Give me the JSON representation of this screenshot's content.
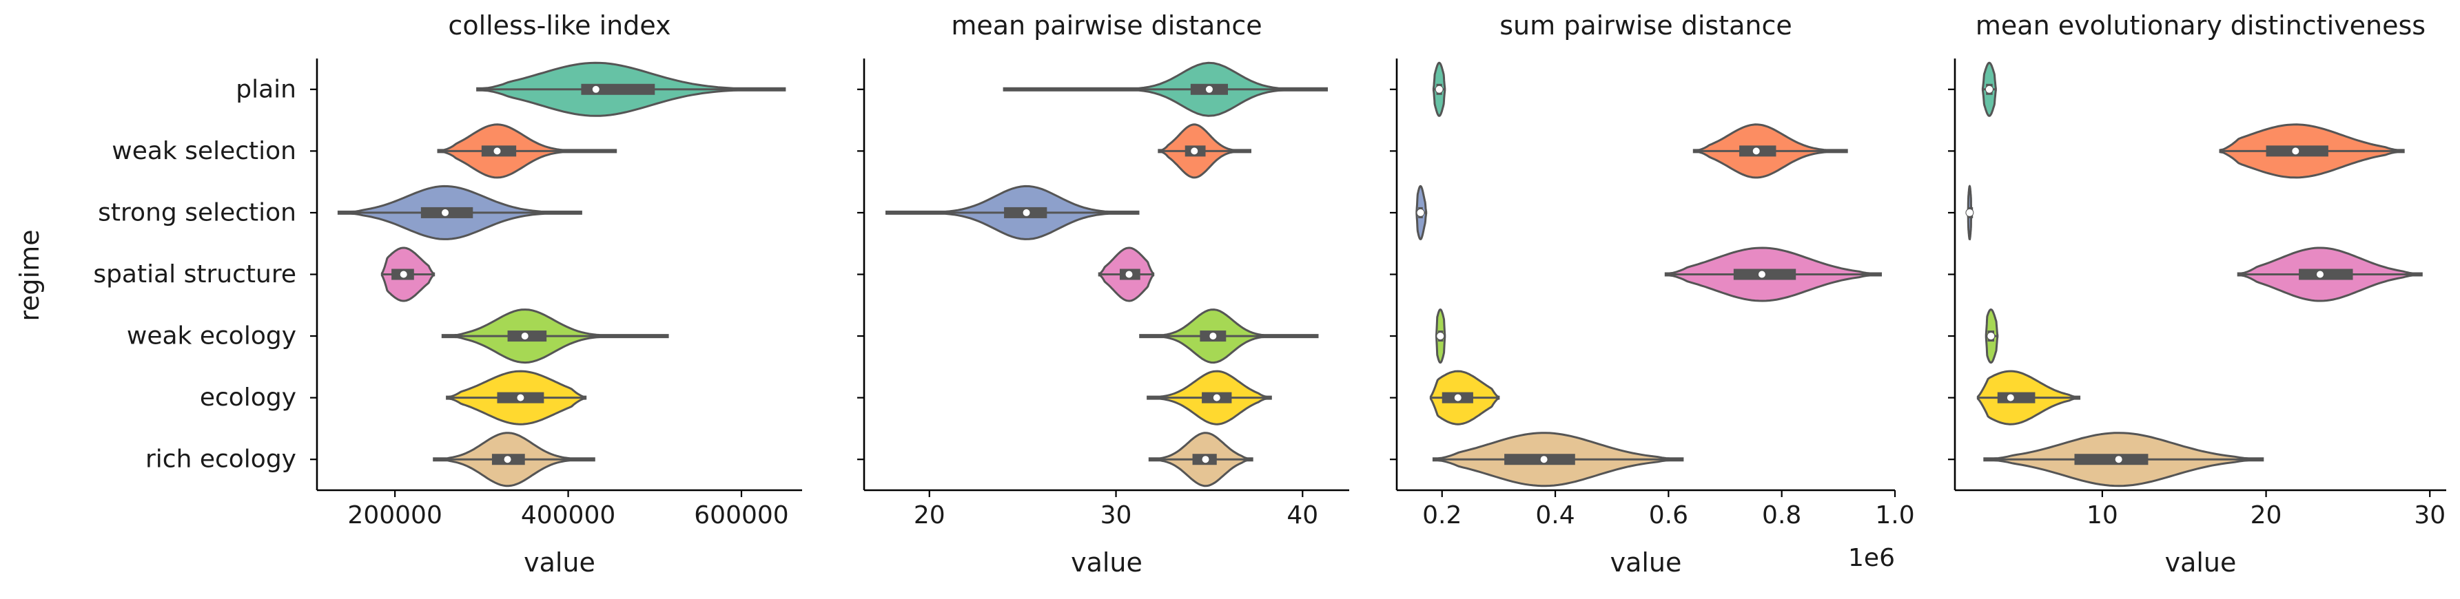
{
  "chart_data": {
    "type": "violin",
    "ylabel": "regime",
    "categories": [
      "plain",
      "weak selection",
      "strong selection",
      "spatial structure",
      "weak ecology",
      "ecology",
      "rich ecology"
    ],
    "colors": [
      "#66c2a5",
      "#fc8d62",
      "#8da0cb",
      "#e78ac3",
      "#a6d854",
      "#ffd92f",
      "#e5c494"
    ],
    "outline_color": "#555555",
    "panels": [
      {
        "title": "colless-like index",
        "xlabel": "value",
        "xlim": [
          110000,
          670000
        ],
        "ticks": [
          200000,
          400000,
          600000
        ],
        "tick_labels": [
          "200000",
          "400000",
          "600000"
        ],
        "offset_label": "",
        "series": [
          {
            "regime": "plain",
            "min": 295000,
            "q1": 415000,
            "median": 432000,
            "q3": 500000,
            "max": 650000
          },
          {
            "regime": "weak selection",
            "min": 250000,
            "q1": 300000,
            "median": 318000,
            "q3": 340000,
            "max": 455000
          },
          {
            "regime": "strong selection",
            "min": 135000,
            "q1": 230000,
            "median": 258000,
            "q3": 290000,
            "max": 415000
          },
          {
            "regime": "spatial structure",
            "min": 185000,
            "q1": 196000,
            "median": 210000,
            "q3": 222000,
            "max": 245000
          },
          {
            "regime": "weak ecology",
            "min": 255000,
            "q1": 330000,
            "median": 350000,
            "q3": 375000,
            "max": 515000
          },
          {
            "regime": "ecology",
            "min": 260000,
            "q1": 318000,
            "median": 345000,
            "q3": 372000,
            "max": 420000
          },
          {
            "regime": "rich ecology",
            "min": 245000,
            "q1": 312000,
            "median": 330000,
            "q3": 350000,
            "max": 430000
          }
        ]
      },
      {
        "title": "mean pairwise distance",
        "xlabel": "value",
        "xlim": [
          16.5,
          42.5
        ],
        "ticks": [
          20,
          30,
          40
        ],
        "tick_labels": [
          "20",
          "30",
          "40"
        ],
        "offset_label": "",
        "series": [
          {
            "regime": "plain",
            "min": 24,
            "q1": 34,
            "median": 35,
            "q3": 36,
            "max": 41.3
          },
          {
            "regime": "weak selection",
            "min": 32.3,
            "q1": 33.7,
            "median": 34.2,
            "q3": 34.8,
            "max": 37.2
          },
          {
            "regime": "strong selection",
            "min": 17.7,
            "q1": 24,
            "median": 25.2,
            "q3": 26.3,
            "max": 31.2
          },
          {
            "regime": "spatial structure",
            "min": 29.1,
            "q1": 30.2,
            "median": 30.7,
            "q3": 31.3,
            "max": 32
          },
          {
            "regime": "weak ecology",
            "min": 31.3,
            "q1": 34.5,
            "median": 35.2,
            "q3": 35.9,
            "max": 40.8
          },
          {
            "regime": "ecology",
            "min": 31.7,
            "q1": 34.6,
            "median": 35.4,
            "q3": 36.2,
            "max": 38.3
          },
          {
            "regime": "rich ecology",
            "min": 31.8,
            "q1": 34.1,
            "median": 34.8,
            "q3": 35.4,
            "max": 37.3
          }
        ]
      },
      {
        "title": "sum pairwise distance",
        "xlabel": "value",
        "xlim": [
          0.12,
          1.0
        ],
        "ticks": [
          0.2,
          0.4,
          0.6,
          0.8,
          1.0
        ],
        "tick_labels": [
          "0.2",
          "0.4",
          "0.6",
          "0.8",
          "1.0"
        ],
        "offset_label": "1e6",
        "series": [
          {
            "regime": "plain",
            "min": 0.185,
            "q1": 0.19,
            "median": 0.195,
            "q3": 0.2,
            "max": 0.205
          },
          {
            "regime": "weak selection",
            "min": 0.645,
            "q1": 0.725,
            "median": 0.755,
            "q3": 0.79,
            "max": 0.915
          },
          {
            "regime": "strong selection",
            "min": 0.155,
            "q1": 0.158,
            "median": 0.162,
            "q3": 0.166,
            "max": 0.172
          },
          {
            "regime": "spatial structure",
            "min": 0.595,
            "q1": 0.715,
            "median": 0.765,
            "q3": 0.825,
            "max": 0.975
          },
          {
            "regime": "weak ecology",
            "min": 0.19,
            "q1": 0.193,
            "median": 0.197,
            "q3": 0.202,
            "max": 0.205
          },
          {
            "regime": "ecology",
            "min": 0.18,
            "q1": 0.2,
            "median": 0.228,
            "q3": 0.255,
            "max": 0.3
          },
          {
            "regime": "rich ecology",
            "min": 0.185,
            "q1": 0.31,
            "median": 0.38,
            "q3": 0.435,
            "max": 0.625
          }
        ]
      },
      {
        "title": "mean evolutionary distinctiveness",
        "xlabel": "value",
        "xlim": [
          1.0,
          31.0
        ],
        "ticks": [
          10,
          20,
          30
        ],
        "tick_labels": [
          "10",
          "20",
          "30"
        ],
        "offset_label": "",
        "series": [
          {
            "regime": "plain",
            "min": 2.7,
            "q1": 2.9,
            "median": 3.1,
            "q3": 3.3,
            "max": 3.5
          },
          {
            "regime": "weak selection",
            "min": 17.2,
            "q1": 20,
            "median": 21.8,
            "q3": 23.8,
            "max": 28.4
          },
          {
            "regime": "strong selection",
            "min": 1.8,
            "q1": 1.85,
            "median": 1.9,
            "q3": 1.95,
            "max": 2.0
          },
          {
            "regime": "spatial structure",
            "min": 18.3,
            "q1": 22,
            "median": 23.3,
            "q3": 25.3,
            "max": 29.5
          },
          {
            "regime": "weak ecology",
            "min": 2.9,
            "q1": 3.0,
            "median": 3.2,
            "q3": 3.4,
            "max": 3.6
          },
          {
            "regime": "ecology",
            "min": 2.4,
            "q1": 3.6,
            "median": 4.4,
            "q3": 5.9,
            "max": 8.6
          },
          {
            "regime": "rich ecology",
            "min": 2.8,
            "q1": 8.3,
            "median": 11,
            "q3": 12.8,
            "max": 19.8
          }
        ]
      }
    ]
  }
}
